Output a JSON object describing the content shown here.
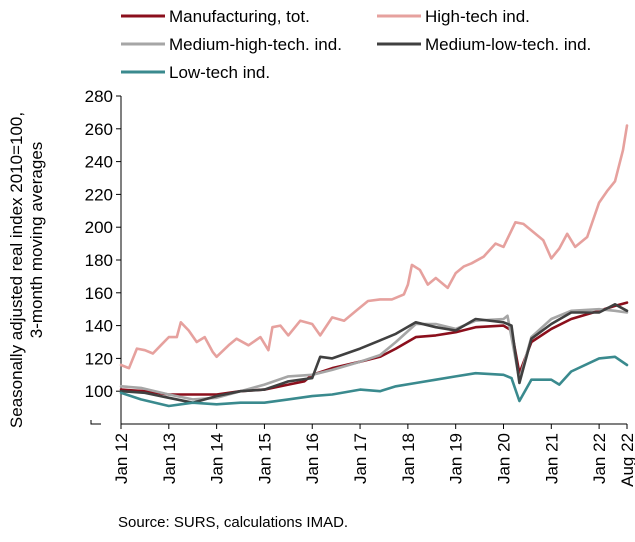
{
  "chart_data": {
    "type": "line",
    "ylabel_line1": "Seasonally adjusted real index 2010=100,",
    "ylabel_line2": "3-month moving averages",
    "ylim": [
      80,
      280
    ],
    "yticks": [
      100,
      120,
      140,
      160,
      180,
      200,
      220,
      240,
      260,
      280
    ],
    "x_tick_labels": [
      "Jan 12",
      "Jan 13",
      "Jan 14",
      "Jan 15",
      "Jan 16",
      "Jan 17",
      "Jan 18",
      "Jan 19",
      "Jan 20",
      "Jan 21",
      "Jan 22",
      "Aug 22"
    ],
    "x_range": [
      "2012-01",
      "2022-08"
    ],
    "grid": false,
    "legend_position": "top",
    "series": [
      {
        "name": "Manufacturing, tot.",
        "color": "#8b0f1c",
        "points": [
          [
            "2012-01",
            101
          ],
          [
            "2012-07",
            100
          ],
          [
            "2013-01",
            98
          ],
          [
            "2013-07",
            98
          ],
          [
            "2014-01",
            98
          ],
          [
            "2014-07",
            100
          ],
          [
            "2015-01",
            101
          ],
          [
            "2015-07",
            104
          ],
          [
            "2015-11",
            106
          ],
          [
            "2016-01",
            110
          ],
          [
            "2016-06",
            114
          ],
          [
            "2017-01",
            118
          ],
          [
            "2017-06",
            121
          ],
          [
            "2017-10",
            126
          ],
          [
            "2018-03",
            133
          ],
          [
            "2018-08",
            134
          ],
          [
            "2019-01",
            136
          ],
          [
            "2019-06",
            139
          ],
          [
            "2020-01",
            140
          ],
          [
            "2020-03",
            137
          ],
          [
            "2020-05",
            111
          ],
          [
            "2020-08",
            130
          ],
          [
            "2021-01",
            138
          ],
          [
            "2021-06",
            144
          ],
          [
            "2022-01",
            149
          ],
          [
            "2022-05",
            152
          ],
          [
            "2022-08",
            154
          ]
        ]
      },
      {
        "name": "High-tech ind.",
        "color": "#e6a19e",
        "points": [
          [
            "2012-01",
            116
          ],
          [
            "2012-03",
            114
          ],
          [
            "2012-05",
            126
          ],
          [
            "2012-07",
            125
          ],
          [
            "2012-09",
            123
          ],
          [
            "2012-11",
            128
          ],
          [
            "2013-01",
            133
          ],
          [
            "2013-03",
            133
          ],
          [
            "2013-04",
            142
          ],
          [
            "2013-06",
            137
          ],
          [
            "2013-08",
            130
          ],
          [
            "2013-10",
            133
          ],
          [
            "2013-12",
            124
          ],
          [
            "2014-01",
            121
          ],
          [
            "2014-04",
            128
          ],
          [
            "2014-06",
            132
          ],
          [
            "2014-09",
            128
          ],
          [
            "2014-12",
            133
          ],
          [
            "2015-02",
            125
          ],
          [
            "2015-03",
            139
          ],
          [
            "2015-05",
            140
          ],
          [
            "2015-07",
            134
          ],
          [
            "2015-10",
            143
          ],
          [
            "2016-01",
            141
          ],
          [
            "2016-03",
            134
          ],
          [
            "2016-06",
            145
          ],
          [
            "2016-09",
            143
          ],
          [
            "2016-12",
            149
          ],
          [
            "2017-03",
            155
          ],
          [
            "2017-06",
            156
          ],
          [
            "2017-09",
            156
          ],
          [
            "2017-12",
            159
          ],
          [
            "2018-01",
            165
          ],
          [
            "2018-02",
            177
          ],
          [
            "2018-04",
            174
          ],
          [
            "2018-06",
            165
          ],
          [
            "2018-08",
            169
          ],
          [
            "2018-11",
            163
          ],
          [
            "2019-01",
            172
          ],
          [
            "2019-03",
            176
          ],
          [
            "2019-05",
            178
          ],
          [
            "2019-08",
            182
          ],
          [
            "2019-11",
            190
          ],
          [
            "2020-01",
            188
          ],
          [
            "2020-04",
            203
          ],
          [
            "2020-06",
            202
          ],
          [
            "2020-09",
            196
          ],
          [
            "2020-11",
            192
          ],
          [
            "2021-01",
            181
          ],
          [
            "2021-03",
            187
          ],
          [
            "2021-05",
            196
          ],
          [
            "2021-07",
            188
          ],
          [
            "2021-10",
            194
          ],
          [
            "2022-01",
            215
          ],
          [
            "2022-03",
            222
          ],
          [
            "2022-05",
            228
          ],
          [
            "2022-07",
            247
          ],
          [
            "2022-08",
            262
          ]
        ]
      },
      {
        "name": "Medium-high-tech. ind.",
        "color": "#a6a6a6",
        "points": [
          [
            "2012-01",
            103
          ],
          [
            "2012-06",
            102
          ],
          [
            "2013-01",
            98
          ],
          [
            "2013-07",
            95
          ],
          [
            "2014-01",
            96
          ],
          [
            "2014-07",
            100
          ],
          [
            "2015-01",
            104
          ],
          [
            "2015-07",
            109
          ],
          [
            "2016-01",
            110
          ],
          [
            "2016-06",
            113
          ],
          [
            "2017-01",
            118
          ],
          [
            "2017-06",
            122
          ],
          [
            "2017-10",
            130
          ],
          [
            "2018-03",
            141
          ],
          [
            "2018-08",
            141
          ],
          [
            "2019-01",
            138
          ],
          [
            "2019-06",
            143
          ],
          [
            "2020-01",
            144
          ],
          [
            "2020-02",
            146
          ],
          [
            "2020-05",
            107
          ],
          [
            "2020-08",
            133
          ],
          [
            "2021-01",
            144
          ],
          [
            "2021-06",
            149
          ],
          [
            "2022-01",
            150
          ],
          [
            "2022-05",
            149
          ],
          [
            "2022-08",
            148
          ]
        ]
      },
      {
        "name": "Medium-low-tech. ind.",
        "color": "#404040",
        "points": [
          [
            "2012-01",
            100
          ],
          [
            "2012-07",
            99
          ],
          [
            "2013-01",
            96
          ],
          [
            "2013-07",
            93
          ],
          [
            "2014-01",
            97
          ],
          [
            "2014-07",
            100
          ],
          [
            "2015-01",
            101
          ],
          [
            "2015-07",
            106
          ],
          [
            "2016-01",
            108
          ],
          [
            "2016-03",
            121
          ],
          [
            "2016-06",
            120
          ],
          [
            "2017-01",
            126
          ],
          [
            "2017-06",
            131
          ],
          [
            "2017-10",
            135
          ],
          [
            "2018-03",
            142
          ],
          [
            "2018-08",
            139
          ],
          [
            "2019-01",
            137
          ],
          [
            "2019-06",
            144
          ],
          [
            "2020-01",
            142
          ],
          [
            "2020-03",
            140
          ],
          [
            "2020-05",
            105
          ],
          [
            "2020-08",
            132
          ],
          [
            "2021-01",
            141
          ],
          [
            "2021-06",
            148
          ],
          [
            "2022-01",
            148
          ],
          [
            "2022-05",
            153
          ],
          [
            "2022-08",
            149
          ]
        ]
      },
      {
        "name": "Low-tech ind.",
        "color": "#3a8a8e",
        "points": [
          [
            "2012-01",
            99
          ],
          [
            "2012-06",
            95
          ],
          [
            "2013-01",
            91
          ],
          [
            "2013-07",
            93
          ],
          [
            "2014-01",
            92
          ],
          [
            "2014-07",
            93
          ],
          [
            "2015-01",
            93
          ],
          [
            "2015-07",
            95
          ],
          [
            "2016-01",
            97
          ],
          [
            "2016-06",
            98
          ],
          [
            "2017-01",
            101
          ],
          [
            "2017-06",
            100
          ],
          [
            "2017-10",
            103
          ],
          [
            "2018-03",
            105
          ],
          [
            "2018-08",
            107
          ],
          [
            "2019-01",
            109
          ],
          [
            "2019-06",
            111
          ],
          [
            "2020-01",
            110
          ],
          [
            "2020-03",
            108
          ],
          [
            "2020-05",
            94
          ],
          [
            "2020-08",
            107
          ],
          [
            "2021-01",
            107
          ],
          [
            "2021-03",
            104
          ],
          [
            "2021-06",
            112
          ],
          [
            "2022-01",
            120
          ],
          [
            "2022-05",
            121
          ],
          [
            "2022-08",
            116
          ]
        ]
      }
    ],
    "source": "Source: SURS, calculations IMAD."
  }
}
